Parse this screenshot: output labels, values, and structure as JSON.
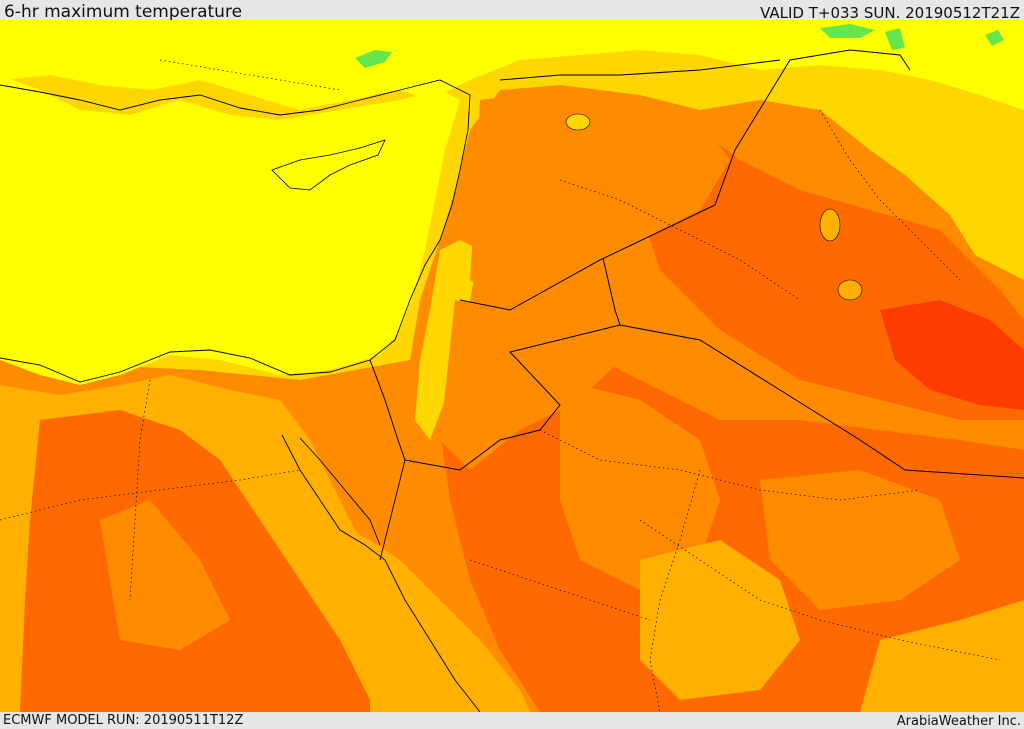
{
  "header": {
    "title": "6-hr maximum temperature",
    "valid": "VALID T+033 SUN. 20190512T21Z"
  },
  "footer": {
    "model_run": "ECMWF MODEL RUN: 20190511T12Z",
    "credit": "ArabiaWeather Inc."
  },
  "colors": {
    "yellow": "#ffff00",
    "light_orange": "#ffd700",
    "amber": "#ffb000",
    "orange": "#ff8c00",
    "dark_orange": "#ff6a00",
    "red_orange": "#ff3c00",
    "green": "#66e64d",
    "border": "#000000"
  }
}
